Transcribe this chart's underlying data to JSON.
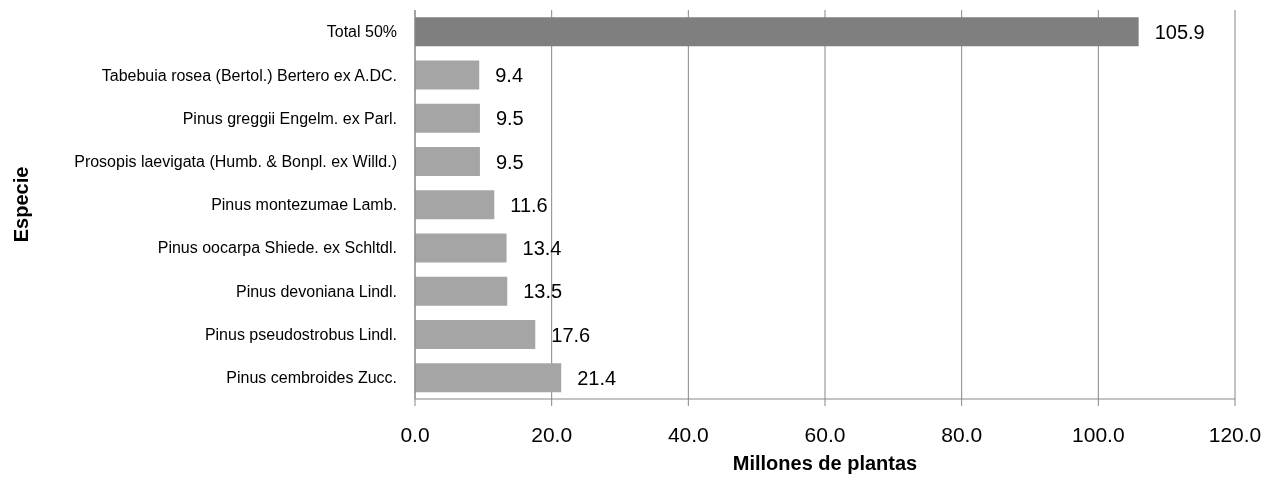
{
  "chart_data": {
    "type": "bar",
    "orientation": "horizontal",
    "xlabel": "Millones de plantas",
    "ylabel": "Especie",
    "categories": [
      "Total 50%",
      "Tabebuia rosea (Bertol.) Bertero ex A.DC.",
      "Pinus greggii Engelm. ex Parl.",
      "Prosopis laevigata (Humb. & Bonpl. ex Willd.)",
      "Pinus montezumae Lamb.",
      "Pinus oocarpa Shiede. ex Schltdl.",
      "Pinus devoniana Lindl.",
      "Pinus pseudostrobus Lindl.",
      "Pinus cembroides Zucc."
    ],
    "values": [
      105.9,
      9.4,
      9.5,
      9.5,
      11.6,
      13.4,
      13.5,
      17.6,
      21.4
    ],
    "colors": [
      "#7f7f7f",
      "#a5a5a5",
      "#a5a5a5",
      "#a5a5a5",
      "#a5a5a5",
      "#a5a5a5",
      "#a5a5a5",
      "#a5a5a5",
      "#a5a5a5"
    ],
    "xlim": [
      0,
      120
    ],
    "xticks": [
      {
        "value": 0,
        "label": "0.0"
      },
      {
        "value": 20,
        "label": "20.0"
      },
      {
        "value": 40,
        "label": "40.0"
      },
      {
        "value": 60,
        "label": "60.0"
      },
      {
        "value": 80,
        "label": "80.0"
      },
      {
        "value": 100,
        "label": "100.0"
      },
      {
        "value": 120,
        "label": "120.0"
      }
    ],
    "grid": "x",
    "data_labels": true
  }
}
